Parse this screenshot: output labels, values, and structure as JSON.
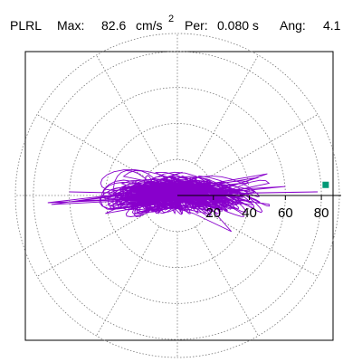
{
  "header": {
    "station": "PLRL",
    "max_label": "Max:",
    "max_value": "82.6",
    "max_unit": "cm/s",
    "max_unit_exp": "2",
    "per_label": "Per:",
    "per_value": "0.080 s",
    "ang_label": "Ang:",
    "ang_value": "4.1"
  },
  "colors": {
    "trace": "#8800cc",
    "marker": "#009977",
    "grid": "#777777",
    "axis": "#000000",
    "frame": "#000000"
  },
  "chart_data": {
    "type": "polar",
    "title": "",
    "r_max": 90,
    "radial_ticks": [
      20,
      40,
      60,
      80
    ],
    "radial_tick_labels": [
      "20",
      "40",
      "60",
      "80"
    ],
    "angular_grid_deg": [
      0,
      30,
      60,
      90,
      120,
      150,
      180,
      210,
      240,
      270,
      300,
      330
    ],
    "peak": {
      "magnitude": 82.6,
      "angle_deg": 4.1
    },
    "trace_extent": {
      "x_min": -75,
      "x_max": 82,
      "y_min": -25,
      "y_max": 25
    }
  }
}
